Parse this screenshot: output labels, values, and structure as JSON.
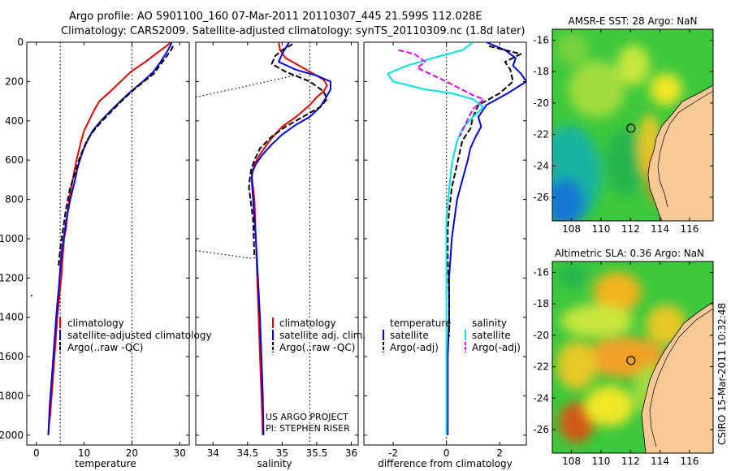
{
  "title_line1": "Argo profile: AO 5901100_160 07-Mar-2011 20110307_445 21.599S 112.028E",
  "title_line2": "Climatology: CARS2009. Satellite-adjusted climatology: synTS_20110309.nc (1.8d later)",
  "credit": "CSIRO 15-Mar-2011 10:32:48",
  "colors": {
    "climatology": "#e00000",
    "satellite": "#0000e0",
    "argo": "#000000",
    "sat_adj_diff": "#00e0e0",
    "argo_adj_diff": "#e000e0"
  },
  "chart_data": [
    {
      "type": "line",
      "id": "temperature",
      "xlabel": "temperature",
      "ylabel": "",
      "xlim": [
        -2,
        32
      ],
      "ylim": [
        2050,
        0
      ],
      "y_reversed": true,
      "xticks": [
        0,
        10,
        20,
        30
      ],
      "yticks": [
        0,
        200,
        400,
        600,
        800,
        1000,
        1200,
        1400,
        1600,
        1800,
        2000
      ],
      "legend": [
        "climatology",
        "satellite-adjusted climatology",
        "Argo(..raw -QC)"
      ],
      "legend_position": "lower-right",
      "ref_lines_x": [
        5,
        20
      ],
      "series": [
        {
          "name": "climatology",
          "style": "solid",
          "color_key": "climatology",
          "x": [
            28.1,
            27.2,
            25.5,
            22.8,
            19.8,
            15.5,
            13.2,
            12.0,
            11.0,
            10.0,
            9.4,
            8.9,
            8.4,
            8.0,
            7.6,
            7.2,
            6.9,
            6.6,
            6.4,
            6.2,
            5.8,
            5.5,
            5.2,
            4.8,
            4.4,
            4.1,
            3.8,
            3.5,
            3.2,
            2.9,
            2.6,
            2.5
          ],
          "y": [
            0,
            20,
            50,
            100,
            150,
            250,
            300,
            350,
            400,
            450,
            500,
            550,
            600,
            650,
            700,
            750,
            800,
            850,
            900,
            950,
            1000,
            1100,
            1200,
            1300,
            1400,
            1500,
            1600,
            1700,
            1800,
            1900,
            1950,
            2000
          ]
        },
        {
          "name": "satellite-adjusted climatology",
          "style": "solid",
          "color_key": "satellite",
          "x": [
            28.3,
            28.0,
            27.3,
            26.0,
            24.5,
            22.3,
            19.8,
            17.6,
            15.5,
            13.5,
            11.8,
            10.7,
            9.8,
            9.1,
            8.5,
            8.1,
            7.6,
            7.1,
            6.7,
            6.3,
            6.0,
            5.4,
            5.0,
            4.7,
            4.3,
            4.0,
            3.7,
            3.4,
            3.1,
            2.8,
            2.6,
            2.5
          ],
          "y": [
            0,
            20,
            50,
            100,
            150,
            200,
            250,
            300,
            350,
            400,
            450,
            500,
            550,
            600,
            650,
            700,
            750,
            800,
            850,
            900,
            950,
            1050,
            1150,
            1250,
            1350,
            1450,
            1550,
            1650,
            1750,
            1850,
            1950,
            2000
          ]
        },
        {
          "name": "Argo(..raw -QC)",
          "style": "dashed",
          "color_key": "argo",
          "x": [
            28.6,
            28.2,
            27.0,
            25.8,
            24.6,
            22.5,
            20.0,
            17.8,
            15.8,
            13.8,
            12.0,
            10.6,
            9.7,
            8.9,
            8.3,
            7.6,
            7.0,
            6.6,
            6.2,
            5.9,
            5.6,
            5.3,
            5.0,
            4.8,
            4.6
          ],
          "y": [
            20,
            40,
            80,
            120,
            160,
            200,
            250,
            300,
            350,
            400,
            450,
            500,
            550,
            600,
            650,
            700,
            750,
            800,
            850,
            900,
            950,
            1000,
            1050,
            1100,
            1150
          ]
        }
      ],
      "markers": [
        {
          "x": -1,
          "y": 1290
        }
      ]
    },
    {
      "type": "line",
      "id": "salinity",
      "xlabel": "salinity",
      "ylabel": "",
      "xlim": [
        33.75,
        36.1
      ],
      "ylim": [
        2050,
        0
      ],
      "y_reversed": true,
      "xticks": [
        34,
        34.5,
        35,
        35.5,
        36
      ],
      "legend": [
        "climatology",
        "satellite adj. clim.",
        "Argo(..raw -QC)"
      ],
      "legend_position": "lower-right",
      "annotation": [
        "US ARGO PROJECT",
        "PI: STEPHEN RISER"
      ],
      "ref_lines_x": [
        35.4
      ],
      "dotted_segments": [
        {
          "x": [
            33.75,
            35.3
          ],
          "y": [
            280,
            160
          ]
        },
        {
          "x": [
            33.75,
            34.55
          ],
          "y": [
            1060,
            1100
          ]
        }
      ],
      "series": [
        {
          "name": "climatology",
          "style": "solid",
          "color_key": "climatology",
          "x": [
            34.95,
            34.97,
            35.05,
            35.25,
            35.45,
            35.6,
            35.65,
            35.6,
            35.5,
            35.4,
            35.2,
            35.0,
            34.82,
            34.7,
            34.6,
            34.56,
            34.6,
            34.62,
            34.64,
            34.66,
            34.68,
            34.7,
            34.72
          ],
          "y": [
            0,
            40,
            80,
            120,
            160,
            190,
            220,
            250,
            280,
            320,
            380,
            430,
            500,
            560,
            620,
            680,
            800,
            1000,
            1200,
            1400,
            1600,
            1800,
            2000
          ]
        },
        {
          "name": "satellite adj. clim.",
          "style": "solid",
          "color_key": "satellite",
          "x": [
            35.1,
            35.05,
            35.0,
            34.95,
            35.2,
            35.5,
            35.7,
            35.7,
            35.62,
            35.55,
            35.4,
            35.2,
            35.0,
            34.85,
            34.72,
            34.62,
            34.57,
            34.56,
            34.58,
            34.62,
            34.65,
            34.68,
            34.7,
            34.72,
            34.73
          ],
          "y": [
            0,
            30,
            60,
            100,
            140,
            170,
            200,
            240,
            290,
            330,
            380,
            420,
            470,
            520,
            570,
            620,
            660,
            700,
            800,
            1000,
            1200,
            1400,
            1600,
            1800,
            2000
          ]
        },
        {
          "name": "Argo(..raw -QC)",
          "style": "dashed",
          "color_key": "argo",
          "x": [
            35.15,
            35.0,
            34.9,
            34.85,
            35.05,
            35.4,
            35.6,
            35.65,
            35.55,
            35.3,
            35.05,
            34.85,
            34.68,
            34.6,
            34.55,
            34.53,
            34.52,
            34.58,
            34.6
          ],
          "y": [
            10,
            40,
            70,
            110,
            150,
            200,
            250,
            290,
            330,
            380,
            430,
            480,
            540,
            600,
            650,
            700,
            740,
            900,
            1100
          ]
        }
      ]
    },
    {
      "type": "line",
      "id": "difference",
      "xlabel": "difference from climatology",
      "ylabel": "",
      "xlim": [
        -3.1,
        3.0
      ],
      "ylim": [
        2050,
        0
      ],
      "y_reversed": true,
      "xticks": [
        -2,
        0,
        2
      ],
      "ref_lines_x": [
        0
      ],
      "legend_groups": [
        {
          "title": "temperature",
          "entries": [
            "satellite",
            "Argo(-adj)"
          ]
        },
        {
          "title": "salinity",
          "entries": [
            "satellite",
            "Argo(-adj)"
          ]
        }
      ],
      "legend_position": "lower-center",
      "series": [
        {
          "name": "temperature satellite",
          "style": "solid",
          "color_key": "satellite",
          "x": [
            1.5,
            2.2,
            2.6,
            2.5,
            2.8,
            3.0,
            2.3,
            1.5,
            1.2,
            1.3,
            1.1,
            0.9,
            0.8,
            0.7,
            0.6,
            0.5,
            0.4,
            0.35,
            0.3,
            0.25,
            0.2,
            0.15,
            0.1,
            0.1,
            0.05,
            0.05,
            0.05
          ],
          "y": [
            0,
            40,
            80,
            120,
            160,
            200,
            260,
            320,
            380,
            430,
            480,
            540,
            600,
            650,
            700,
            750,
            800,
            850,
            900,
            950,
            1000,
            1100,
            1200,
            1400,
            1600,
            1800,
            2000
          ]
        },
        {
          "name": "temperature Argo(-adj)",
          "style": "dashed",
          "color_key": "argo",
          "x": [
            1.6,
            2.8,
            2.2,
            2.4,
            2.5,
            2.0,
            1.2,
            1.0,
            0.9,
            0.6,
            0.5,
            0.4,
            0.3,
            0.2,
            0.15,
            0.1,
            0.05,
            0.05,
            0.1,
            0.1
          ],
          "y": [
            20,
            60,
            100,
            140,
            200,
            260,
            320,
            380,
            440,
            500,
            560,
            620,
            680,
            740,
            800,
            860,
            950,
            1100,
            1300,
            1500
          ]
        },
        {
          "name": "salinity satellite",
          "style": "solid",
          "color_key": "sat_adj_diff",
          "x": [
            1.0,
            0.6,
            -0.5,
            -1.5,
            -2.2,
            -2.0,
            -0.8,
            0.2,
            1.0,
            1.4,
            1.0,
            0.6,
            0.4,
            0.3,
            0.2,
            0.15,
            0.1,
            0.05,
            0.0,
            0.0,
            0.0,
            0.0,
            0.0,
            0.0
          ],
          "y": [
            0,
            40,
            80,
            120,
            160,
            200,
            240,
            260,
            290,
            330,
            380,
            440,
            500,
            560,
            620,
            680,
            750,
            820,
            900,
            1000,
            1200,
            1500,
            1800,
            2000
          ]
        },
        {
          "name": "salinity Argo(-adj)",
          "style": "dashed",
          "color_key": "argo_adj_diff",
          "x": [
            -1.8,
            -1.2,
            -0.8,
            -1.1,
            0.0,
            1.0,
            1.4,
            1.0,
            0.7,
            0.5
          ],
          "y": [
            40,
            60,
            100,
            130,
            200,
            270,
            290,
            340,
            420,
            480
          ]
        }
      ]
    },
    {
      "type": "heatmap",
      "id": "sst_map",
      "title": "AMSR-E SST: 28 Argo: NaN",
      "xlim": [
        106.7,
        117.6
      ],
      "ylim": [
        -27.5,
        -15.3
      ],
      "xticks": [
        108,
        110,
        112,
        114,
        116
      ],
      "yticks": [
        -16,
        -18,
        -20,
        -22,
        -24,
        -26
      ],
      "marker": {
        "lon": 112.028,
        "lat": -21.599
      }
    },
    {
      "type": "heatmap",
      "id": "sla_map",
      "title": "Altimetric SLA: 0.36 Argo: NaN",
      "xlim": [
        106.7,
        117.6
      ],
      "ylim": [
        -27.5,
        -15.3
      ],
      "xticks": [
        108,
        110,
        112,
        114,
        116
      ],
      "yticks": [
        -16,
        -18,
        -20,
        -22,
        -24,
        -26
      ],
      "marker": {
        "lon": 112.028,
        "lat": -21.599
      }
    }
  ]
}
